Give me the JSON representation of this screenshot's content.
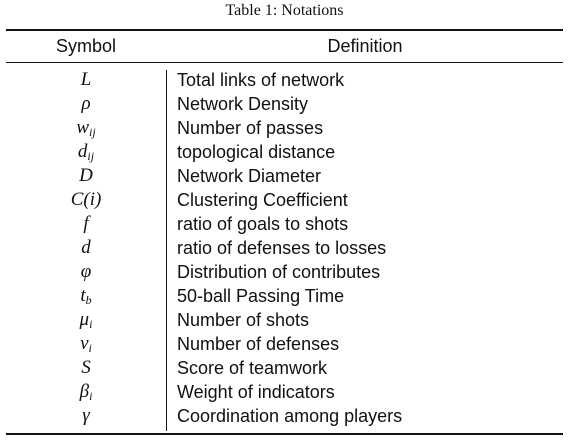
{
  "caption": "Table 1: Notations",
  "header": {
    "symbol": "Symbol",
    "definition": "Definition"
  },
  "rows": [
    {
      "symbol": "L",
      "sub": "",
      "symbol_suffix": "",
      "definition": "Total links of network"
    },
    {
      "symbol": "ρ",
      "sub": "",
      "symbol_suffix": "",
      "definition": "Network Density"
    },
    {
      "symbol": "w",
      "sub": "ij",
      "symbol_suffix": "",
      "definition": "Number of passes"
    },
    {
      "symbol": "d",
      "sub": "ij",
      "symbol_suffix": "",
      "definition": "topological distance"
    },
    {
      "symbol": "D",
      "sub": "",
      "symbol_suffix": "",
      "definition": "Network Diameter"
    },
    {
      "symbol": "C(i)",
      "sub": "",
      "symbol_suffix": "",
      "definition": "Clustering Coefficient"
    },
    {
      "symbol": "f",
      "sub": "",
      "symbol_suffix": "",
      "definition": "ratio of goals to shots"
    },
    {
      "symbol": "d",
      "sub": "",
      "symbol_suffix": "",
      "definition": "ratio of defenses to losses"
    },
    {
      "symbol": "φ",
      "sub": "",
      "symbol_suffix": "",
      "definition": "Distribution of contributes"
    },
    {
      "symbol": "t",
      "sub": "b",
      "symbol_suffix": "",
      "definition": "50-ball Passing Time"
    },
    {
      "symbol": "μ",
      "sub": "i",
      "symbol_suffix": "",
      "definition": "Number of shots"
    },
    {
      "symbol": "ν",
      "sub": "i",
      "symbol_suffix": "",
      "definition": "Number of defenses"
    },
    {
      "symbol": "S",
      "sub": "",
      "symbol_suffix": "",
      "definition": "Score of teamwork"
    },
    {
      "symbol": "β",
      "sub": "i",
      "symbol_suffix": "",
      "definition": "Weight of indicators"
    },
    {
      "symbol": "γ",
      "sub": "",
      "symbol_suffix": "",
      "definition": "Coordination among players"
    }
  ]
}
